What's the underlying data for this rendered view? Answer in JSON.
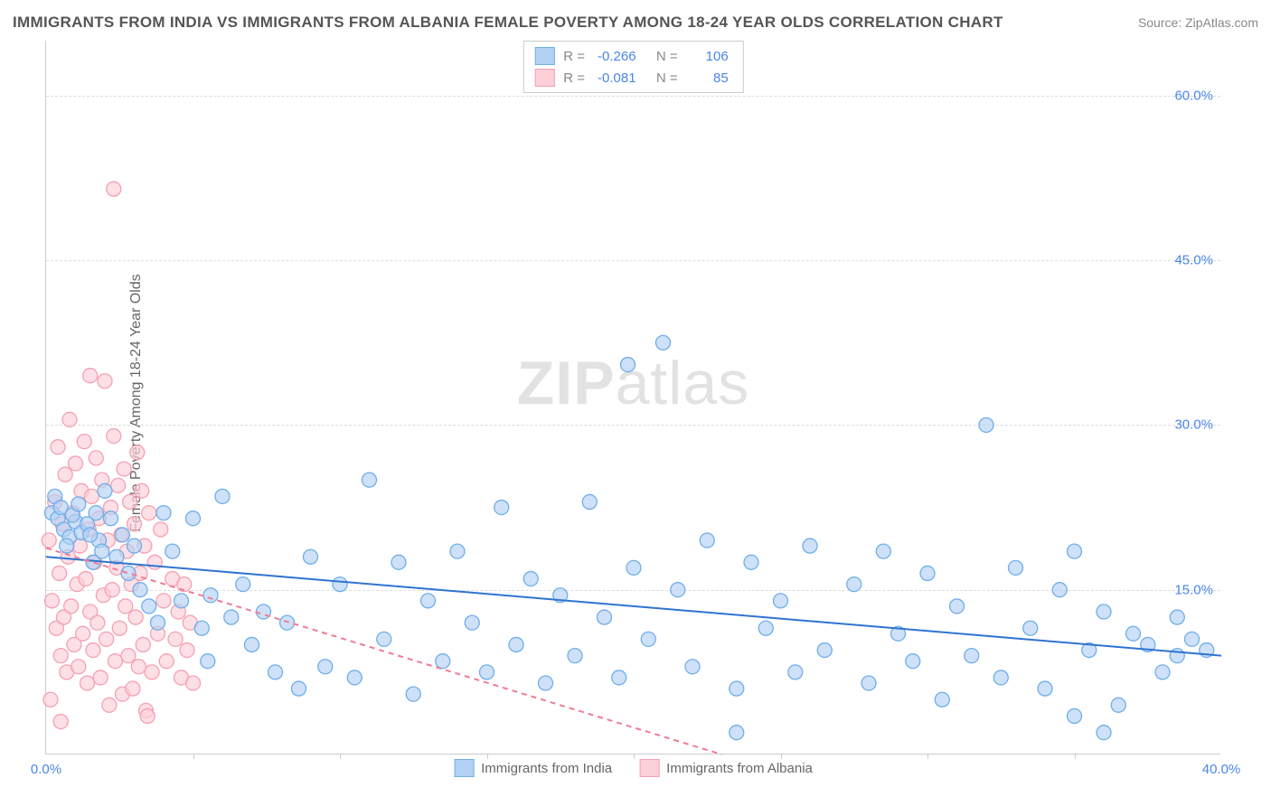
{
  "title": "IMMIGRANTS FROM INDIA VS IMMIGRANTS FROM ALBANIA FEMALE POVERTY AMONG 18-24 YEAR OLDS CORRELATION CHART",
  "source": "Source: ZipAtlas.com",
  "ylabel": "Female Poverty Among 18-24 Year Olds",
  "watermark_a": "ZIP",
  "watermark_b": "atlas",
  "chart": {
    "type": "scatter",
    "xlim": [
      0,
      40
    ],
    "ylim": [
      0,
      65
    ],
    "xticks": [
      0,
      40
    ],
    "xtick_minor": [
      5,
      10,
      15,
      20,
      25,
      30,
      35
    ],
    "yticks": [
      15,
      30,
      45,
      60
    ],
    "plot_bg": "#ffffff",
    "grid_color": "#dddddd",
    "axis_color": "#cccccc",
    "tick_label_color": "#4a86e8",
    "marker_radius": 8,
    "marker_stroke_width": 1.3,
    "regression_line_width": 2,
    "series": [
      {
        "name": "Immigrants from India",
        "color_fill": "#b3d1f5",
        "color_stroke": "#6faeea",
        "line_color": "#2f74d0",
        "line_dash": "none",
        "R": "-0.266",
        "N": "106",
        "regression": {
          "x1": 0,
          "y1": 18.0,
          "x2": 40,
          "y2": 9.0
        },
        "points": [
          [
            0.2,
            22
          ],
          [
            0.4,
            21.5
          ],
          [
            0.6,
            20.5
          ],
          [
            0.8,
            19.8
          ],
          [
            1.0,
            21.2
          ],
          [
            1.2,
            20.2
          ],
          [
            0.3,
            23.5
          ],
          [
            0.5,
            22.5
          ],
          [
            0.9,
            21.8
          ],
          [
            1.1,
            22.8
          ],
          [
            0.7,
            19.0
          ],
          [
            1.4,
            21.0
          ],
          [
            1.6,
            17.5
          ],
          [
            1.8,
            19.5
          ],
          [
            2.0,
            24.0
          ],
          [
            1.5,
            20.0
          ],
          [
            1.7,
            22.0
          ],
          [
            1.9,
            18.5
          ],
          [
            2.2,
            21.5
          ],
          [
            2.4,
            18.0
          ],
          [
            2.6,
            20.0
          ],
          [
            2.8,
            16.5
          ],
          [
            3.0,
            19.0
          ],
          [
            3.2,
            15.0
          ],
          [
            3.5,
            13.5
          ],
          [
            3.8,
            12.0
          ],
          [
            4.0,
            22.0
          ],
          [
            4.3,
            18.5
          ],
          [
            4.6,
            14.0
          ],
          [
            5.0,
            21.5
          ],
          [
            5.3,
            11.5
          ],
          [
            5.6,
            14.5
          ],
          [
            6.0,
            23.5
          ],
          [
            6.3,
            12.5
          ],
          [
            5.5,
            8.5
          ],
          [
            6.7,
            15.5
          ],
          [
            7.0,
            10.0
          ],
          [
            7.4,
            13.0
          ],
          [
            7.8,
            7.5
          ],
          [
            8.2,
            12.0
          ],
          [
            8.6,
            6.0
          ],
          [
            9.0,
            18.0
          ],
          [
            9.5,
            8.0
          ],
          [
            10.0,
            15.5
          ],
          [
            10.5,
            7.0
          ],
          [
            11.0,
            25.0
          ],
          [
            11.5,
            10.5
          ],
          [
            12.0,
            17.5
          ],
          [
            12.5,
            5.5
          ],
          [
            13.0,
            14.0
          ],
          [
            13.5,
            8.5
          ],
          [
            14.0,
            18.5
          ],
          [
            14.5,
            12.0
          ],
          [
            15.0,
            7.5
          ],
          [
            15.5,
            22.5
          ],
          [
            16.0,
            10.0
          ],
          [
            16.5,
            16.0
          ],
          [
            17.0,
            6.5
          ],
          [
            17.5,
            14.5
          ],
          [
            18.0,
            9.0
          ],
          [
            18.5,
            23.0
          ],
          [
            19.0,
            12.5
          ],
          [
            19.5,
            7.0
          ],
          [
            20.0,
            17.0
          ],
          [
            20.5,
            10.5
          ],
          [
            21.0,
            37.5
          ],
          [
            21.5,
            15.0
          ],
          [
            22.0,
            8.0
          ],
          [
            22.5,
            19.5
          ],
          [
            19.8,
            35.5
          ],
          [
            23.5,
            6.0
          ],
          [
            24.0,
            17.5
          ],
          [
            24.5,
            11.5
          ],
          [
            25.0,
            14.0
          ],
          [
            25.5,
            7.5
          ],
          [
            26.0,
            19.0
          ],
          [
            26.5,
            9.5
          ],
          [
            23.5,
            2.0
          ],
          [
            27.5,
            15.5
          ],
          [
            28.0,
            6.5
          ],
          [
            28.5,
            18.5
          ],
          [
            29.0,
            11.0
          ],
          [
            29.5,
            8.5
          ],
          [
            30.0,
            16.5
          ],
          [
            30.5,
            5.0
          ],
          [
            31.0,
            13.5
          ],
          [
            31.5,
            9.0
          ],
          [
            32.0,
            30.0
          ],
          [
            32.5,
            7.0
          ],
          [
            33.0,
            17.0
          ],
          [
            33.5,
            11.5
          ],
          [
            34.0,
            6.0
          ],
          [
            34.5,
            15.0
          ],
          [
            35.0,
            18.5
          ],
          [
            35.5,
            9.5
          ],
          [
            36.0,
            13.0
          ],
          [
            36.5,
            4.5
          ],
          [
            36.0,
            2.0
          ],
          [
            37.5,
            10.0
          ],
          [
            38.0,
            7.5
          ],
          [
            38.5,
            12.5
          ],
          [
            35.0,
            3.5
          ],
          [
            37.0,
            11.0
          ],
          [
            38.5,
            9.0
          ],
          [
            39.0,
            10.5
          ],
          [
            39.5,
            9.5
          ]
        ]
      },
      {
        "name": "Immigrants from Albania",
        "color_fill": "#fccfd9",
        "color_stroke": "#f5a0b2",
        "line_color": "#f07c94",
        "line_dash": "6,5",
        "R": "-0.081",
        "N": "85",
        "regression": {
          "x1": 0,
          "y1": 18.8,
          "x2": 23,
          "y2": 0
        },
        "points": [
          [
            0.1,
            19.5
          ],
          [
            0.2,
            14.0
          ],
          [
            0.3,
            23.0
          ],
          [
            0.35,
            11.5
          ],
          [
            0.4,
            28.0
          ],
          [
            0.45,
            16.5
          ],
          [
            0.5,
            9.0
          ],
          [
            0.55,
            21.0
          ],
          [
            0.6,
            12.5
          ],
          [
            0.65,
            25.5
          ],
          [
            0.7,
            7.5
          ],
          [
            0.75,
            18.0
          ],
          [
            0.8,
            30.5
          ],
          [
            0.85,
            13.5
          ],
          [
            0.9,
            22.0
          ],
          [
            0.95,
            10.0
          ],
          [
            1.0,
            26.5
          ],
          [
            1.05,
            15.5
          ],
          [
            1.1,
            8.0
          ],
          [
            1.15,
            19.0
          ],
          [
            1.2,
            24.0
          ],
          [
            1.25,
            11.0
          ],
          [
            1.3,
            28.5
          ],
          [
            1.35,
            16.0
          ],
          [
            1.4,
            6.5
          ],
          [
            1.45,
            20.5
          ],
          [
            1.5,
            13.0
          ],
          [
            1.55,
            23.5
          ],
          [
            1.6,
            9.5
          ],
          [
            1.65,
            17.5
          ],
          [
            1.7,
            27.0
          ],
          [
            1.75,
            12.0
          ],
          [
            1.8,
            21.5
          ],
          [
            1.85,
            7.0
          ],
          [
            1.9,
            25.0
          ],
          [
            1.95,
            14.5
          ],
          [
            2.0,
            34.0
          ],
          [
            2.05,
            10.5
          ],
          [
            2.1,
            19.5
          ],
          [
            2.15,
            4.5
          ],
          [
            2.2,
            22.5
          ],
          [
            2.25,
            15.0
          ],
          [
            2.3,
            29.0
          ],
          [
            2.35,
            8.5
          ],
          [
            2.4,
            17.0
          ],
          [
            2.45,
            24.5
          ],
          [
            2.5,
            11.5
          ],
          [
            2.55,
            20.0
          ],
          [
            2.6,
            5.5
          ],
          [
            2.65,
            26.0
          ],
          [
            2.7,
            13.5
          ],
          [
            2.75,
            18.5
          ],
          [
            2.8,
            9.0
          ],
          [
            2.85,
            23.0
          ],
          [
            2.9,
            15.5
          ],
          [
            2.95,
            6.0
          ],
          [
            3.0,
            21.0
          ],
          [
            3.05,
            12.5
          ],
          [
            3.1,
            27.5
          ],
          [
            3.15,
            8.0
          ],
          [
            3.2,
            16.5
          ],
          [
            3.25,
            24.0
          ],
          [
            3.3,
            10.0
          ],
          [
            3.35,
            19.0
          ],
          [
            3.4,
            4.0
          ],
          [
            2.3,
            51.5
          ],
          [
            3.5,
            22.0
          ],
          [
            3.6,
            7.5
          ],
          [
            3.7,
            17.5
          ],
          [
            3.8,
            11.0
          ],
          [
            3.9,
            20.5
          ],
          [
            4.0,
            14.0
          ],
          [
            4.1,
            8.5
          ],
          [
            0.15,
            5.0
          ],
          [
            4.3,
            16.0
          ],
          [
            4.4,
            10.5
          ],
          [
            4.5,
            13.0
          ],
          [
            4.6,
            7.0
          ],
          [
            4.7,
            15.5
          ],
          [
            4.8,
            9.5
          ],
          [
            4.9,
            12.0
          ],
          [
            5.0,
            6.5
          ],
          [
            3.45,
            3.5
          ],
          [
            1.5,
            34.5
          ],
          [
            0.5,
            3.0
          ]
        ]
      }
    ]
  },
  "legend_bottom": [
    {
      "label": "Immigrants from India",
      "swatch_fill": "#b3d1f5",
      "swatch_stroke": "#6faeea"
    },
    {
      "label": "Immigrants from Albania",
      "swatch_fill": "#fccfd9",
      "swatch_stroke": "#f5a0b2"
    }
  ]
}
